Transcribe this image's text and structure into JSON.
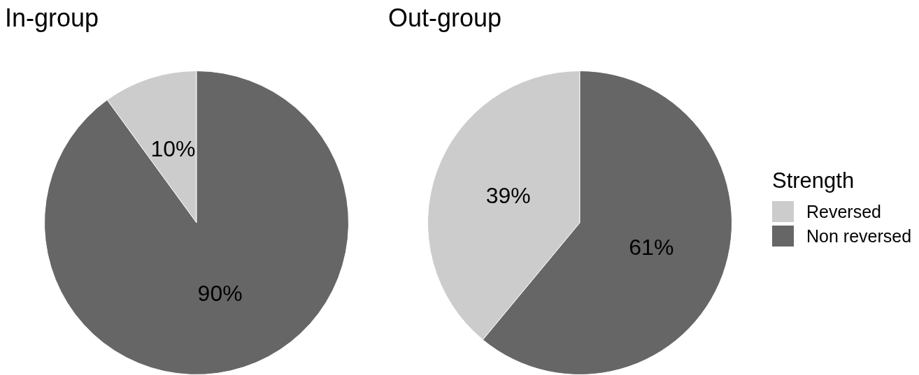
{
  "chart_data": [
    {
      "type": "pie",
      "title": "In-group",
      "categories": [
        null,
        null
      ],
      "values": [
        10,
        90
      ],
      "colors": [
        "#cccccc",
        "#666666"
      ],
      "value_labels": [
        "10%",
        "90%"
      ]
    },
    {
      "type": "pie",
      "title": "Out-group",
      "categories": [
        "Reversed",
        "Non reversed"
      ],
      "values": [
        39,
        61
      ],
      "colors": [
        "#cccccc",
        "#666666"
      ],
      "value_labels": [
        "39%",
        "61%"
      ],
      "legend": "right",
      "legend_title": "Strength"
    }
  ]
}
